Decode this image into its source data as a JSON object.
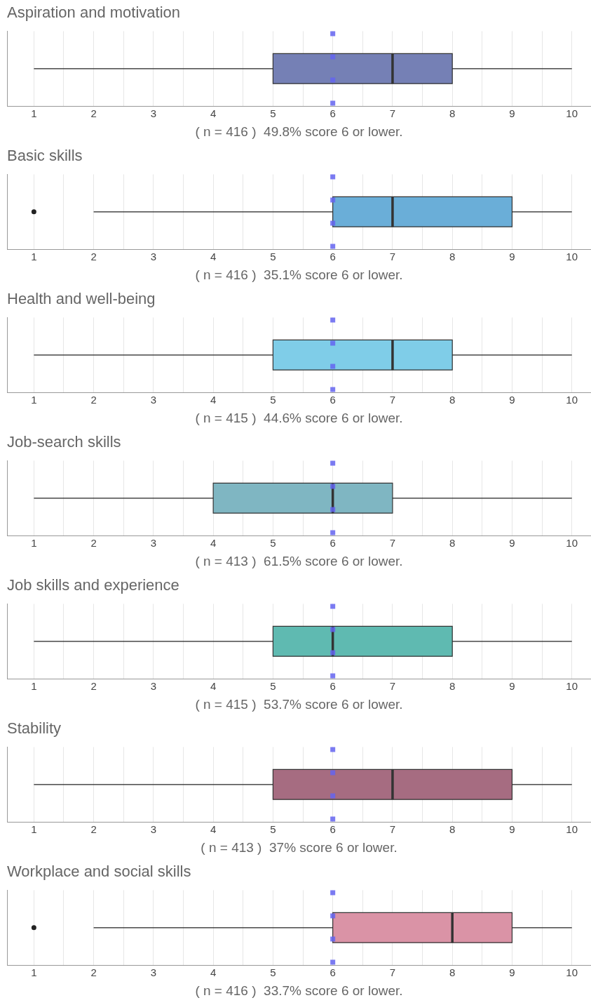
{
  "chart_data": [
    {
      "type": "box",
      "orientation": "horizontal",
      "title": "Aspiration and motivation",
      "xlabel": "( n = 416 )  49.8% score 6 or lower.",
      "categories": [
        null
      ],
      "color": "#7580b5",
      "boxes": [
        {
          "low": 1,
          "q1": 5,
          "median": 7,
          "q3": 8,
          "high": 10
        }
      ],
      "xlim": [
        0.55,
        10.32
      ],
      "xticks": [
        1,
        {
          "value": 1.5,
          "label": null
        },
        2,
        {
          "value": 2.5,
          "label": null
        },
        3,
        {
          "value": 3.5,
          "label": null
        },
        4,
        {
          "value": 4.5,
          "label": null
        },
        5,
        {
          "value": 5.5,
          "label": null
        },
        6,
        {
          "value": 6.5,
          "label": null
        },
        7,
        {
          "value": 7.5,
          "label": null
        },
        8,
        {
          "value": 8.5,
          "label": null
        },
        9,
        {
          "value": 9.5,
          "label": null
        },
        10
      ],
      "grid": "x",
      "legend": false,
      "tick_labels": "x",
      "ref_lines": [
        {
          "axis": "x",
          "value": 6,
          "color": "#6464f0",
          "line_style": "dashed"
        }
      ]
    },
    {
      "type": "box",
      "orientation": "horizontal",
      "title": "Basic skills",
      "xlabel": "( n = 416 )  35.1% score 6 or lower.",
      "categories": [
        null
      ],
      "color": "#6aaed8",
      "boxes": [
        {
          "low": 2,
          "q1": 6,
          "median": 7,
          "q3": 9,
          "high": 10,
          "outliers": [
            1
          ]
        }
      ],
      "xlim": [
        0.55,
        10.32
      ],
      "xticks": [
        1,
        {
          "value": 1.5,
          "label": null
        },
        2,
        {
          "value": 2.5,
          "label": null
        },
        3,
        {
          "value": 3.5,
          "label": null
        },
        4,
        {
          "value": 4.5,
          "label": null
        },
        5,
        {
          "value": 5.5,
          "label": null
        },
        6,
        {
          "value": 6.5,
          "label": null
        },
        7,
        {
          "value": 7.5,
          "label": null
        },
        8,
        {
          "value": 8.5,
          "label": null
        },
        9,
        {
          "value": 9.5,
          "label": null
        },
        10
      ],
      "grid": "x",
      "legend": false,
      "tick_labels": "x",
      "ref_lines": [
        {
          "axis": "x",
          "value": 6,
          "color": "#6464f0",
          "line_style": "dashed"
        }
      ]
    },
    {
      "type": "box",
      "orientation": "horizontal",
      "title": "Health and well-being",
      "xlabel": "( n = 415 )  44.6% score 6 or lower.",
      "categories": [
        null
      ],
      "color": "#7fcde8",
      "boxes": [
        {
          "low": 1,
          "q1": 5,
          "median": 7,
          "q3": 8,
          "high": 10
        }
      ],
      "xlim": [
        0.55,
        10.32
      ],
      "xticks": [
        1,
        {
          "value": 1.5,
          "label": null
        },
        2,
        {
          "value": 2.5,
          "label": null
        },
        3,
        {
          "value": 3.5,
          "label": null
        },
        4,
        {
          "value": 4.5,
          "label": null
        },
        5,
        {
          "value": 5.5,
          "label": null
        },
        6,
        {
          "value": 6.5,
          "label": null
        },
        7,
        {
          "value": 7.5,
          "label": null
        },
        8,
        {
          "value": 8.5,
          "label": null
        },
        9,
        {
          "value": 9.5,
          "label": null
        },
        10
      ],
      "grid": "x",
      "legend": false,
      "tick_labels": "x",
      "ref_lines": [
        {
          "axis": "x",
          "value": 6,
          "color": "#6464f0",
          "line_style": "dashed"
        }
      ]
    },
    {
      "type": "box",
      "orientation": "horizontal",
      "title": "Job-search skills",
      "xlabel": "( n = 413 )  61.5% score 6 or lower.",
      "categories": [
        null
      ],
      "color": "#7fb6c2",
      "boxes": [
        {
          "low": 1,
          "q1": 4,
          "median": 6,
          "q3": 7,
          "high": 10
        }
      ],
      "xlim": [
        0.55,
        10.32
      ],
      "xticks": [
        1,
        {
          "value": 1.5,
          "label": null
        },
        2,
        {
          "value": 2.5,
          "label": null
        },
        3,
        {
          "value": 3.5,
          "label": null
        },
        4,
        {
          "value": 4.5,
          "label": null
        },
        5,
        {
          "value": 5.5,
          "label": null
        },
        6,
        {
          "value": 6.5,
          "label": null
        },
        7,
        {
          "value": 7.5,
          "label": null
        },
        8,
        {
          "value": 8.5,
          "label": null
        },
        9,
        {
          "value": 9.5,
          "label": null
        },
        10
      ],
      "grid": "x",
      "legend": false,
      "tick_labels": "x",
      "ref_lines": [
        {
          "axis": "x",
          "value": 6,
          "color": "#6464f0",
          "line_style": "dashed"
        }
      ]
    },
    {
      "type": "box",
      "orientation": "horizontal",
      "title": "Job skills and experience",
      "xlabel": "( n = 415 )  53.7% score 6 or lower.",
      "categories": [
        null
      ],
      "color": "#5fbab1",
      "boxes": [
        {
          "low": 1,
          "q1": 5,
          "median": 6,
          "q3": 8,
          "high": 10
        }
      ],
      "xlim": [
        0.55,
        10.32
      ],
      "xticks": [
        1,
        {
          "value": 1.5,
          "label": null
        },
        2,
        {
          "value": 2.5,
          "label": null
        },
        3,
        {
          "value": 3.5,
          "label": null
        },
        4,
        {
          "value": 4.5,
          "label": null
        },
        5,
        {
          "value": 5.5,
          "label": null
        },
        6,
        {
          "value": 6.5,
          "label": null
        },
        7,
        {
          "value": 7.5,
          "label": null
        },
        8,
        {
          "value": 8.5,
          "label": null
        },
        9,
        {
          "value": 9.5,
          "label": null
        },
        10
      ],
      "grid": "x",
      "legend": false,
      "tick_labels": "x",
      "ref_lines": [
        {
          "axis": "x",
          "value": 6,
          "color": "#6464f0",
          "line_style": "dashed"
        }
      ]
    },
    {
      "type": "box",
      "orientation": "horizontal",
      "title": "Stability",
      "xlabel": "( n = 413 )  37% score 6 or lower.",
      "categories": [
        null
      ],
      "color": "#a66c81",
      "boxes": [
        {
          "low": 1,
          "q1": 5,
          "median": 7,
          "q3": 9,
          "high": 10
        }
      ],
      "xlim": [
        0.55,
        10.32
      ],
      "xticks": [
        1,
        {
          "value": 1.5,
          "label": null
        },
        2,
        {
          "value": 2.5,
          "label": null
        },
        3,
        {
          "value": 3.5,
          "label": null
        },
        4,
        {
          "value": 4.5,
          "label": null
        },
        5,
        {
          "value": 5.5,
          "label": null
        },
        6,
        {
          "value": 6.5,
          "label": null
        },
        7,
        {
          "value": 7.5,
          "label": null
        },
        8,
        {
          "value": 8.5,
          "label": null
        },
        9,
        {
          "value": 9.5,
          "label": null
        },
        10
      ],
      "grid": "x",
      "legend": false,
      "tick_labels": "x",
      "ref_lines": [
        {
          "axis": "x",
          "value": 6,
          "color": "#6464f0",
          "line_style": "dashed"
        }
      ]
    },
    {
      "type": "box",
      "orientation": "horizontal",
      "title": "Workplace and social skills",
      "xlabel": "( n = 416 )  33.7% score 6 or lower.",
      "categories": [
        null
      ],
      "color": "#da93a6",
      "boxes": [
        {
          "low": 2,
          "q1": 6,
          "median": 8,
          "q3": 9,
          "high": 10,
          "outliers": [
            1
          ]
        }
      ],
      "xlim": [
        0.55,
        10.32
      ],
      "xticks": [
        1,
        {
          "value": 1.5,
          "label": null
        },
        2,
        {
          "value": 2.5,
          "label": null
        },
        3,
        {
          "value": 3.5,
          "label": null
        },
        4,
        {
          "value": 4.5,
          "label": null
        },
        5,
        {
          "value": 5.5,
          "label": null
        },
        6,
        {
          "value": 6.5,
          "label": null
        },
        7,
        {
          "value": 7.5,
          "label": null
        },
        8,
        {
          "value": 8.5,
          "label": null
        },
        9,
        {
          "value": 9.5,
          "label": null
        },
        10
      ],
      "grid": "x",
      "legend": false,
      "tick_labels": "x",
      "ref_lines": [
        {
          "axis": "x",
          "value": 6,
          "color": "#6464f0",
          "line_style": "dashed"
        }
      ]
    }
  ]
}
